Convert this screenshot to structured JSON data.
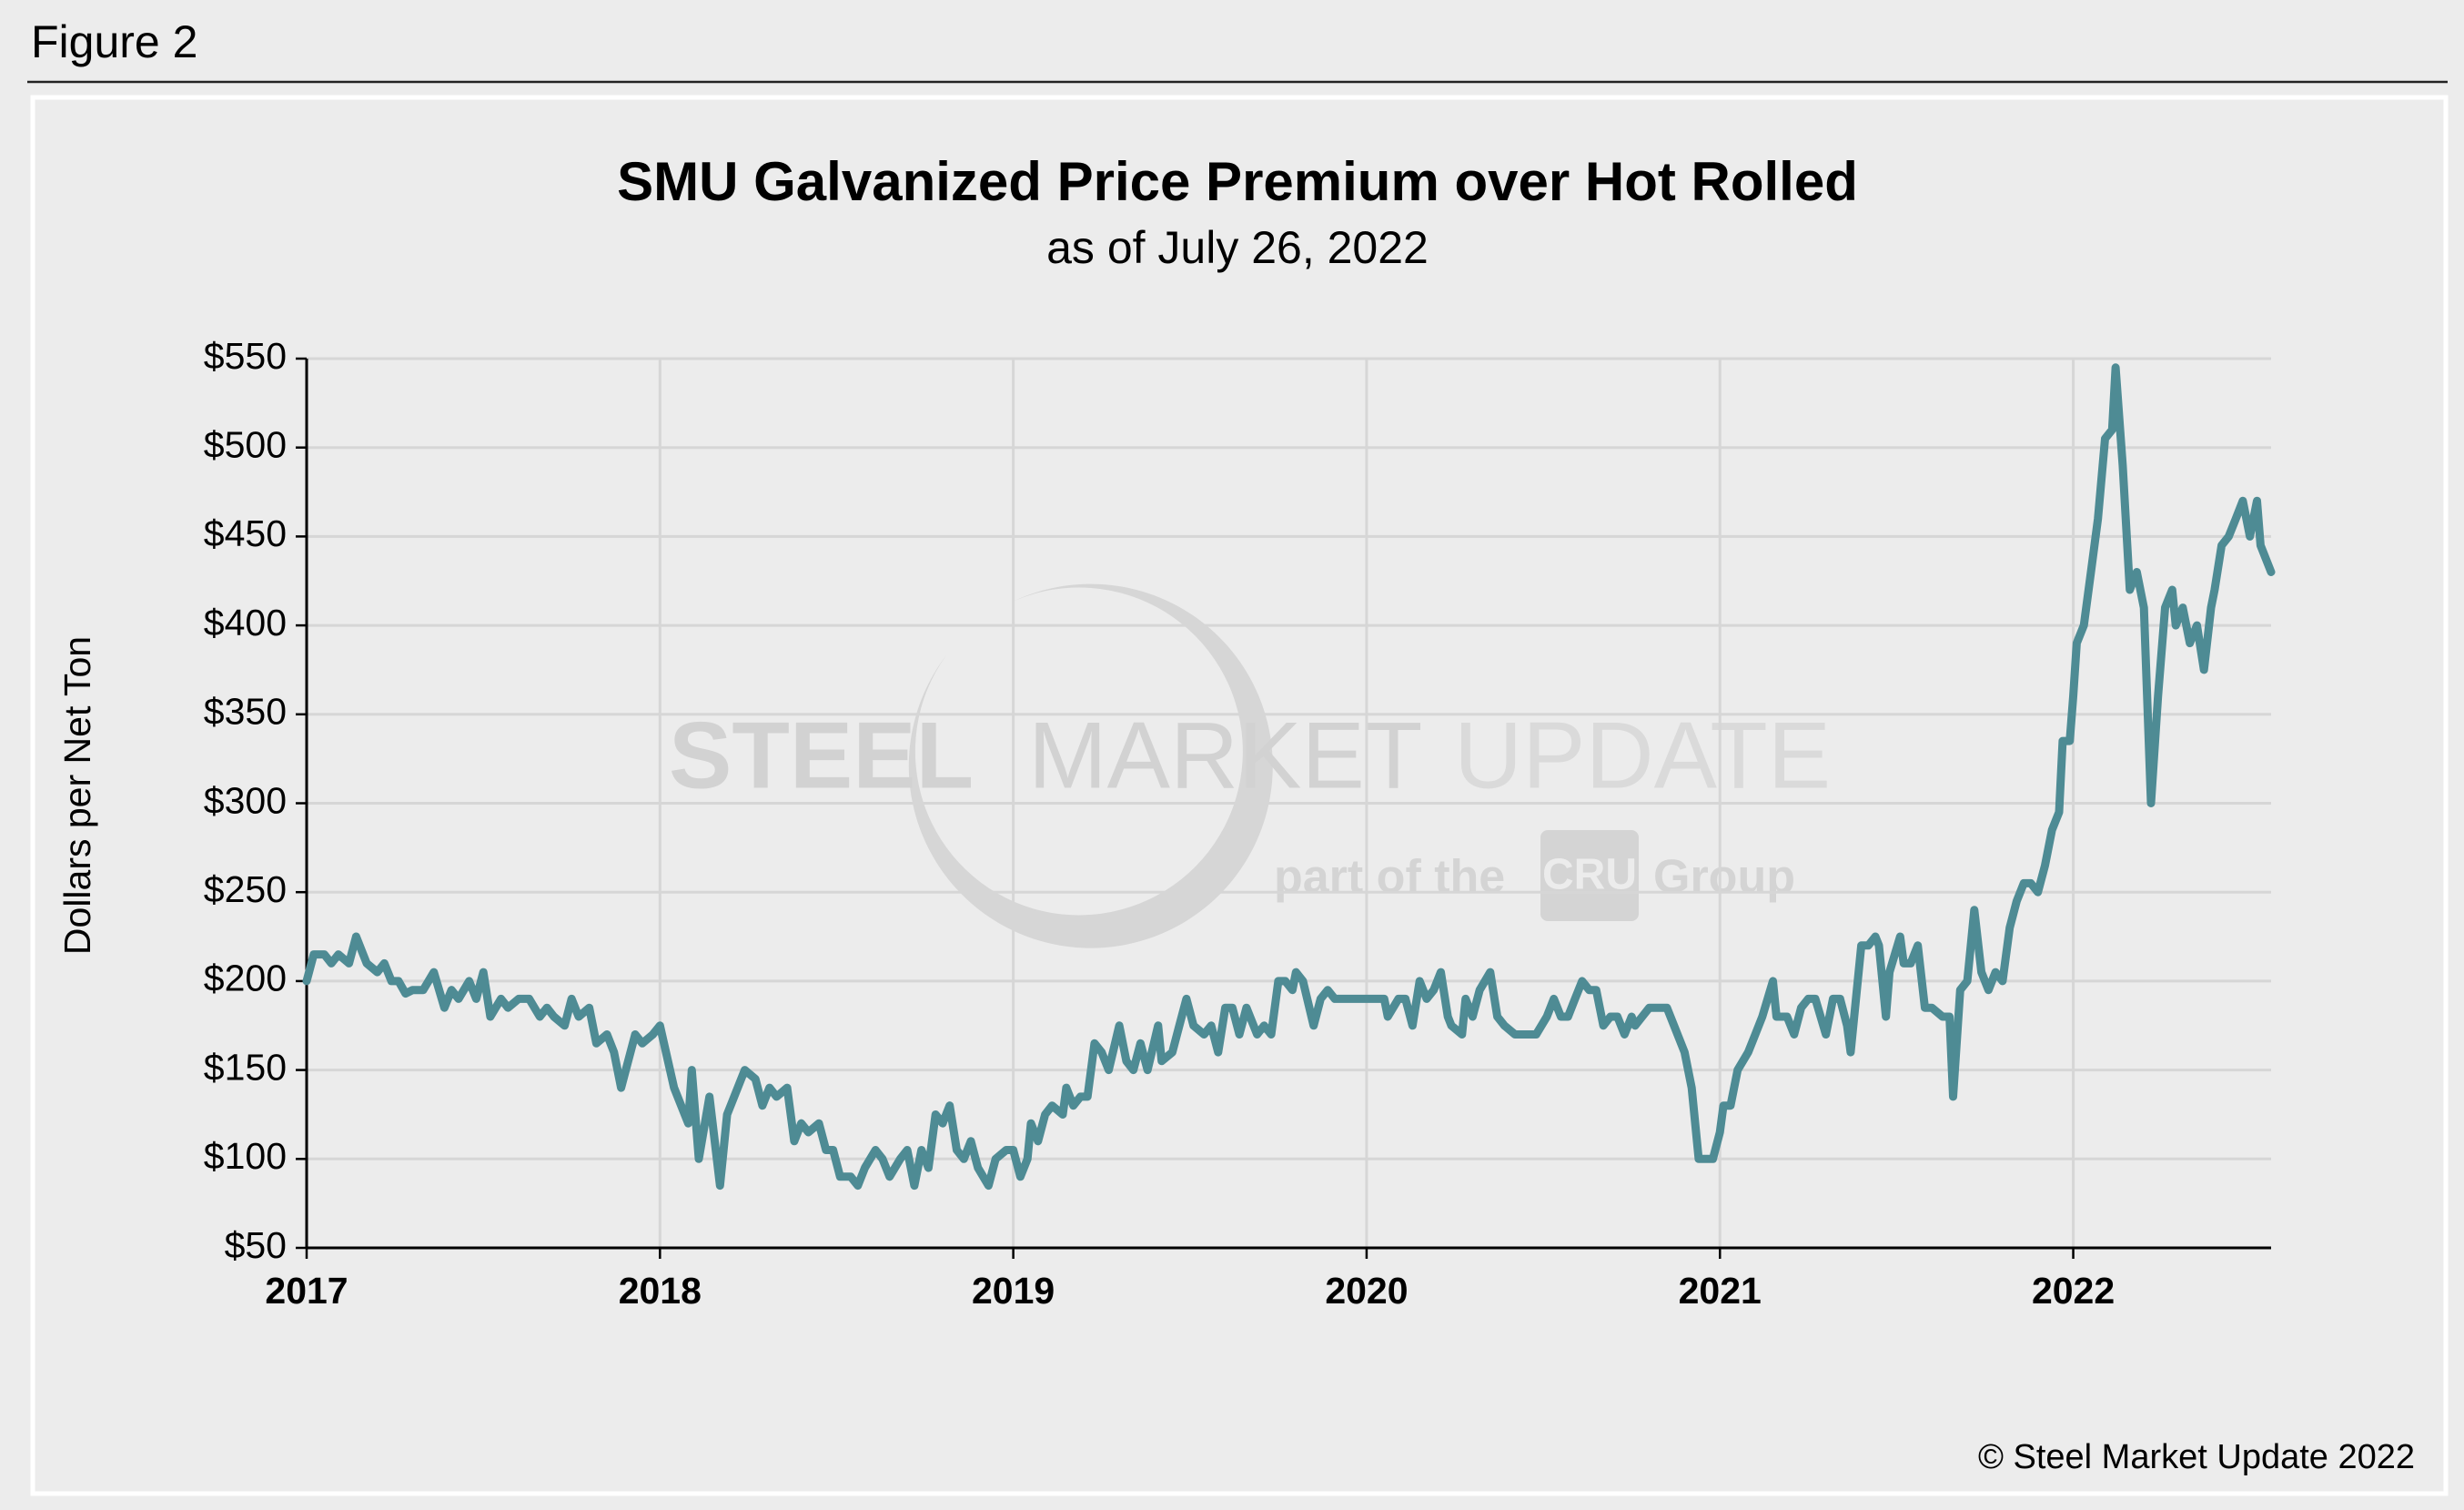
{
  "figure_label": "Figure 2",
  "copyright": "© Steel Market Update 2022",
  "watermark": {
    "brand": "STEEL",
    "brand2": "MARKET",
    "brand3": "UPDATE",
    "tagline": "part of the",
    "group_logo": "CRU",
    "group": "Group"
  },
  "chart_data": {
    "type": "line",
    "title": "SMU Galvanized Price Premium over Hot Rolled",
    "subtitle": "as of July 26, 2022",
    "y_label": "Dollars per Net Ton",
    "color": "#4e8b94",
    "grid": true,
    "xlim": [
      2017,
      2022.56
    ],
    "xticks": [
      2017,
      2018,
      2019,
      2020,
      2021,
      2022
    ],
    "ylim": [
      50,
      550
    ],
    "yticks": [
      {
        "value": 50,
        "label": "$50"
      },
      {
        "value": 100,
        "label": "$100"
      },
      {
        "value": 150,
        "label": "$150"
      },
      {
        "value": 200,
        "label": "$200"
      },
      {
        "value": 250,
        "label": "$250"
      },
      {
        "value": 300,
        "label": "$300"
      },
      {
        "value": 350,
        "label": "$350"
      },
      {
        "value": 400,
        "label": "$400"
      },
      {
        "value": 450,
        "label": "$450"
      },
      {
        "value": 500,
        "label": "$500"
      },
      {
        "value": 550,
        "label": "$550"
      }
    ],
    "x": [
      2017.0,
      2017.02,
      2017.05,
      2017.07,
      2017.09,
      2017.12,
      2017.14,
      2017.17,
      2017.2,
      2017.22,
      2017.24,
      2017.26,
      2017.28,
      2017.3,
      2017.33,
      2017.36,
      2017.39,
      2017.41,
      2017.43,
      2017.46,
      2017.48,
      2017.5,
      2017.52,
      2017.55,
      2017.57,
      2017.6,
      2017.63,
      2017.66,
      2017.68,
      2017.7,
      2017.73,
      2017.75,
      2017.77,
      2017.8,
      2017.82,
      2017.85,
      2017.87,
      2017.89,
      2017.93,
      2017.95,
      2017.98,
      2018.0,
      2018.04,
      2018.06,
      2018.08,
      2018.09,
      2018.11,
      2018.14,
      2018.17,
      2018.19,
      2018.24,
      2018.27,
      2018.29,
      2018.31,
      2018.33,
      2018.36,
      2018.38,
      2018.4,
      2018.42,
      2018.45,
      2018.47,
      2018.49,
      2018.51,
      2018.54,
      2018.56,
      2018.58,
      2018.61,
      2018.63,
      2018.65,
      2018.68,
      2018.7,
      2018.72,
      2018.74,
      2018.76,
      2018.78,
      2018.8,
      2018.82,
      2018.84,
      2018.86,
      2018.88,
      2018.9,
      2018.93,
      2018.95,
      2018.98,
      2019.0,
      2019.02,
      2019.04,
      2019.05,
      2019.07,
      2019.09,
      2019.11,
      2019.14,
      2019.15,
      2019.17,
      2019.19,
      2019.21,
      2019.23,
      2019.25,
      2019.27,
      2019.3,
      2019.32,
      2019.34,
      2019.36,
      2019.38,
      2019.41,
      2019.42,
      2019.45,
      2019.47,
      2019.49,
      2019.51,
      2019.54,
      2019.56,
      2019.58,
      2019.6,
      2019.62,
      2019.64,
      2019.66,
      2019.69,
      2019.71,
      2019.73,
      2019.75,
      2019.77,
      2019.79,
      2019.8,
      2019.82,
      2019.85,
      2019.87,
      2019.89,
      2019.91,
      2020.0,
      2020.05,
      2020.06,
      2020.09,
      2020.11,
      2020.13,
      2020.15,
      2020.17,
      2020.19,
      2020.21,
      2020.23,
      2020.24,
      2020.27,
      2020.28,
      2020.3,
      2020.32,
      2020.35,
      2020.37,
      2020.39,
      2020.42,
      2020.45,
      2020.48,
      2020.51,
      2020.53,
      2020.55,
      2020.57,
      2020.59,
      2020.61,
      2020.63,
      2020.65,
      2020.67,
      2020.69,
      2020.71,
      2020.73,
      2020.75,
      2020.76,
      2020.78,
      2020.8,
      2020.85,
      2020.87,
      2020.9,
      2020.92,
      2020.94,
      2020.98,
      2021.0,
      2021.01,
      2021.03,
      2021.05,
      2021.08,
      2021.1,
      2021.12,
      2021.15,
      2021.16,
      2021.19,
      2021.21,
      2021.23,
      2021.25,
      2021.27,
      2021.3,
      2021.32,
      2021.34,
      2021.36,
      2021.37,
      2021.4,
      2021.42,
      2021.44,
      2021.45,
      2021.47,
      2021.48,
      2021.51,
      2021.52,
      2021.54,
      2021.56,
      2021.58,
      2021.6,
      2021.63,
      2021.65,
      2021.66,
      2021.68,
      2021.7,
      2021.72,
      2021.74,
      2021.76,
      2021.78,
      2021.8,
      2021.82,
      2021.84,
      2021.86,
      2021.88,
      2021.9,
      2021.92,
      2021.94,
      2021.96,
      2021.97,
      2021.99,
      2022.0,
      2022.01,
      2022.03,
      2022.05,
      2022.07,
      2022.09,
      2022.11,
      2022.12,
      2022.14,
      2022.16,
      2022.18,
      2022.2,
      2022.22,
      2022.24,
      2022.26,
      2022.28,
      2022.29,
      2022.31,
      2022.33,
      2022.35,
      2022.37,
      2022.39,
      2022.4,
      2022.42,
      2022.44,
      2022.46,
      2022.48,
      2022.5,
      2022.52,
      2022.53,
      2022.56
    ],
    "values": [
      200,
      215,
      215,
      210,
      215,
      210,
      225,
      210,
      205,
      210,
      200,
      200,
      193,
      195,
      195,
      205,
      185,
      195,
      190,
      200,
      190,
      205,
      180,
      190,
      185,
      190,
      190,
      180,
      185,
      180,
      175,
      190,
      180,
      185,
      165,
      170,
      160,
      140,
      170,
      165,
      170,
      175,
      140,
      130,
      120,
      150,
      100,
      135,
      85,
      125,
      150,
      145,
      130,
      140,
      135,
      140,
      110,
      120,
      115,
      120,
      105,
      105,
      90,
      90,
      85,
      95,
      105,
      100,
      90,
      100,
      105,
      85,
      105,
      95,
      125,
      120,
      130,
      105,
      100,
      110,
      95,
      85,
      100,
      105,
      105,
      90,
      100,
      120,
      110,
      125,
      130,
      125,
      140,
      130,
      135,
      135,
      165,
      160,
      150,
      175,
      155,
      150,
      165,
      150,
      175,
      155,
      160,
      175,
      190,
      175,
      170,
      175,
      160,
      185,
      185,
      170,
      185,
      170,
      175,
      170,
      200,
      200,
      195,
      205,
      200,
      175,
      190,
      195,
      190,
      190,
      190,
      180,
      190,
      190,
      175,
      200,
      190,
      195,
      205,
      180,
      175,
      170,
      190,
      180,
      195,
      205,
      180,
      175,
      170,
      170,
      170,
      180,
      190,
      180,
      180,
      190,
      200,
      195,
      195,
      175,
      180,
      180,
      170,
      180,
      175,
      180,
      185,
      185,
      175,
      160,
      140,
      100,
      100,
      115,
      130,
      130,
      150,
      160,
      170,
      180,
      200,
      180,
      180,
      170,
      185,
      190,
      190,
      170,
      190,
      190,
      175,
      160,
      220,
      220,
      225,
      220,
      180,
      205,
      225,
      210,
      210,
      220,
      185,
      185,
      180,
      180,
      135,
      195,
      200,
      240,
      205,
      195,
      205,
      200,
      230,
      245,
      255,
      255,
      250,
      265,
      285,
      295,
      335,
      335,
      360,
      390,
      400,
      430,
      460,
      505,
      510,
      545,
      490,
      420,
      430,
      410,
      300,
      360,
      410,
      420,
      400,
      410,
      390,
      400,
      375,
      410,
      420,
      445,
      450,
      460,
      470,
      450,
      470,
      445,
      430
    ]
  }
}
